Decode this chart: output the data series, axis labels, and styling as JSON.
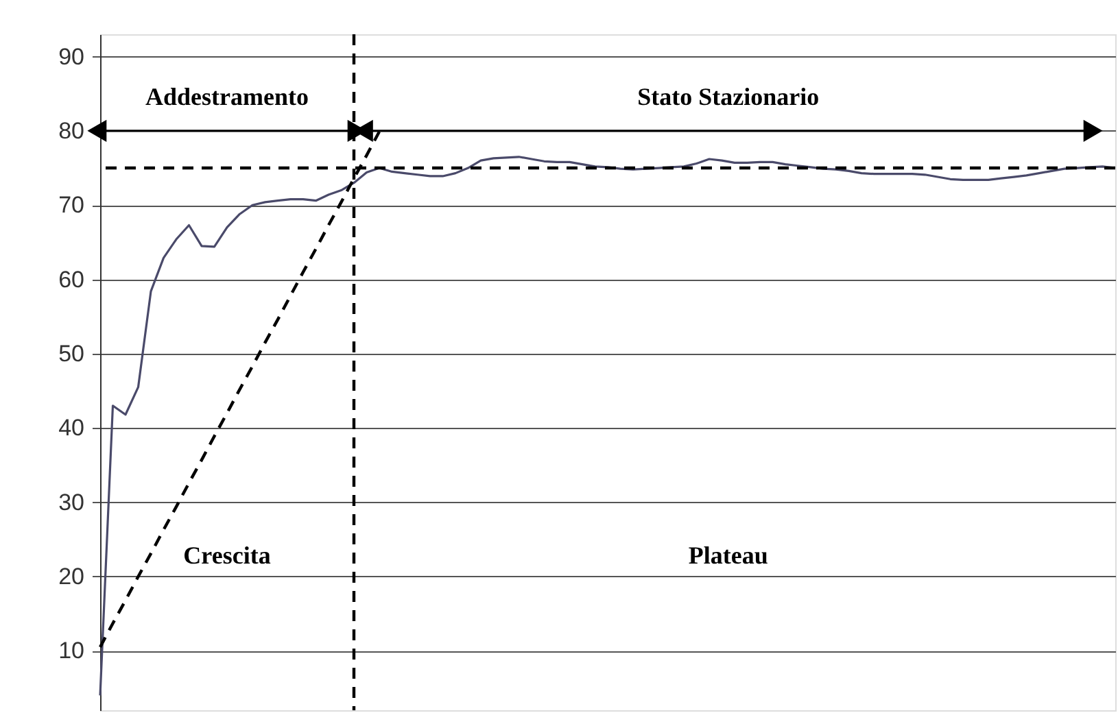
{
  "chart_data": {
    "type": "line",
    "categories": [
      null,
      null,
      null,
      null,
      null,
      null,
      null,
      null,
      null,
      null,
      null,
      null,
      null,
      null,
      null,
      null,
      null,
      null,
      null,
      null,
      null,
      null,
      null,
      null,
      null,
      null,
      null,
      null,
      null,
      null,
      null,
      null,
      null,
      null,
      null,
      null,
      null,
      null,
      null,
      null,
      null,
      null,
      null,
      null,
      null,
      null,
      null,
      null,
      null,
      null,
      null,
      null,
      null,
      null,
      null,
      null,
      null,
      null,
      null,
      null,
      null,
      null,
      null,
      null,
      null,
      null,
      null,
      null,
      null,
      null,
      null,
      null,
      null,
      null,
      null,
      null,
      null,
      null,
      null,
      null,
      null
    ],
    "ylim": [
      2,
      93
    ],
    "yticks": [
      10,
      20,
      30,
      40,
      50,
      60,
      70,
      80,
      90
    ],
    "grid": "y",
    "tick_labels": "y",
    "series": [
      {
        "type": "line",
        "color": "#4a4a6a",
        "values": [
          4,
          43,
          41.8,
          45.5,
          58.4,
          62.9,
          65.4,
          67.3,
          64.5,
          64.4,
          67,
          68.8,
          70,
          70.4,
          70.6,
          70.8,
          70.8,
          70.6,
          71.4,
          72,
          73,
          74.4,
          75,
          74.5,
          74.3,
          74.1,
          73.9,
          73.9,
          74.3,
          75,
          76,
          76.3,
          76.4,
          76.5,
          76.2,
          75.9,
          75.8,
          75.8,
          75.5,
          75.2,
          75.1,
          74.9,
          74.8,
          74.9,
          75,
          75.1,
          75.2,
          75.6,
          76.2,
          76,
          75.7,
          75.7,
          75.8,
          75.8,
          75.5,
          75.3,
          75.1,
          74.9,
          74.8,
          74.6,
          74.3,
          74.2,
          74.2,
          74.2,
          74.2,
          74.1,
          73.8,
          73.5,
          73.4,
          73.4,
          73.4,
          73.6,
          73.8,
          74,
          74.3,
          74.6,
          74.9,
          75,
          75.1,
          75.2,
          75
        ]
      },
      {
        "type": "line",
        "color": "#000000",
        "line_style": "dashed",
        "values": [
          10.5,
          13.7,
          16.8,
          20,
          23.1,
          26.3,
          29.4,
          32.6,
          35.7,
          38.9,
          42,
          45.2,
          48.3,
          51.5,
          54.6,
          57.8,
          61,
          64.1,
          67.3,
          70.4,
          73.6,
          76.7,
          79.9,
          null,
          null,
          null,
          null,
          null,
          null,
          null,
          null,
          null,
          null,
          null,
          null,
          null,
          null,
          null,
          null,
          null,
          null,
          null,
          null,
          null,
          null,
          null,
          null,
          null,
          null,
          null,
          null,
          null,
          null,
          null,
          null,
          null,
          null,
          null,
          null,
          null,
          null,
          null,
          null,
          null,
          null,
          null,
          null,
          null,
          null,
          null,
          null,
          null,
          null,
          null,
          null,
          null,
          null,
          null,
          null,
          null,
          null
        ]
      },
      {
        "type": "line",
        "color": "#000000",
        "name": "Addestramento",
        "values": [
          80,
          80,
          80,
          80,
          80,
          80,
          80,
          80,
          80,
          80,
          80,
          80,
          80,
          80,
          80,
          80,
          80,
          80,
          80,
          80,
          80,
          null,
          null,
          null,
          null,
          null,
          null,
          null,
          null,
          null,
          null,
          null,
          null,
          null,
          null,
          null,
          null,
          null,
          null,
          null,
          null,
          null,
          null,
          null,
          null,
          null,
          null,
          null,
          null,
          null,
          null,
          null,
          null,
          null,
          null,
          null,
          null,
          null,
          null,
          null,
          null,
          null,
          null,
          null,
          null,
          null,
          null,
          null,
          null,
          null,
          null,
          null,
          null,
          null,
          null,
          null,
          null,
          null,
          null,
          null,
          null
        ]
      },
      {
        "type": "line",
        "color": "#000000",
        "name": "Stato Stazionario",
        "values": [
          null,
          null,
          null,
          null,
          null,
          null,
          null,
          null,
          null,
          null,
          null,
          null,
          null,
          null,
          null,
          null,
          null,
          null,
          null,
          null,
          null,
          80,
          80,
          80,
          80,
          80,
          80,
          80,
          80,
          80,
          80,
          80,
          80,
          80,
          80,
          80,
          80,
          80,
          80,
          80,
          80,
          80,
          80,
          80,
          80,
          80,
          80,
          80,
          80,
          80,
          80,
          80,
          80,
          80,
          80,
          80,
          80,
          80,
          80,
          80,
          80,
          80,
          80,
          80,
          80,
          80,
          80,
          80,
          80,
          80,
          80,
          80,
          80,
          80,
          80,
          80,
          80,
          80,
          80,
          null,
          null
        ]
      }
    ],
    "ref_lines": [
      {
        "axis": "y",
        "value": 75,
        "color": "#000000",
        "line_style": "dashed"
      }
    ],
    "annotations": [
      "Crescita",
      "Plateau"
    ]
  }
}
